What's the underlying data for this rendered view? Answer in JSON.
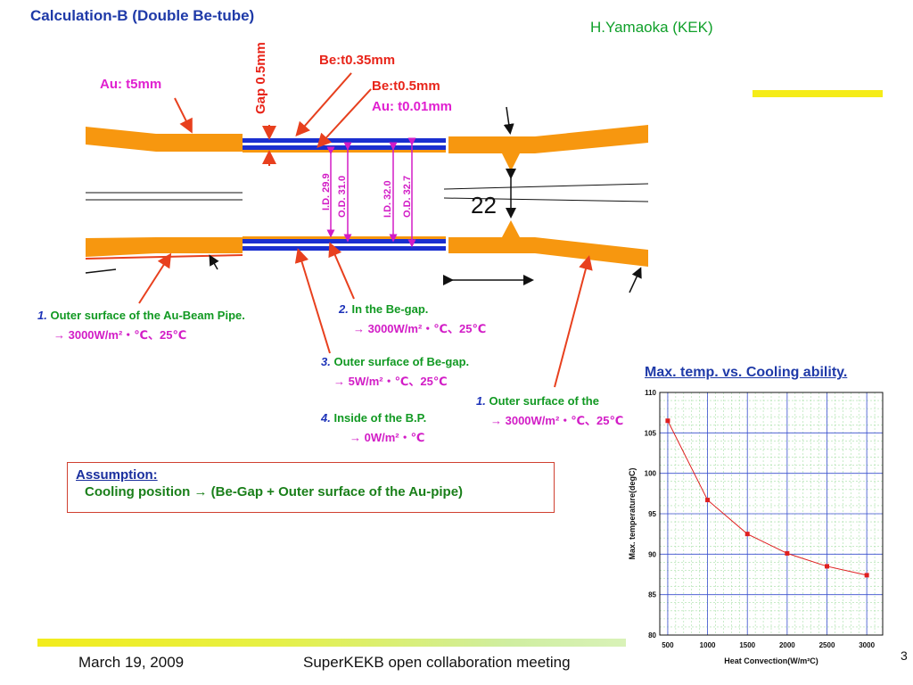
{
  "title": "Calculation-B (Double Be-tube)",
  "author": "H.Yamaoka (KEK)",
  "diagram": {
    "au_label": "Au: t5mm",
    "gap_label": "Gap 0.5mm",
    "be035_label": "Be:t0.35mm",
    "be05_label": "Be:t0.5mm",
    "au001_label": "Au: t0.01mm",
    "dim_22": "22",
    "id_299": "I.D. 29.9",
    "od_310": "O.D. 31.0",
    "id_320": "I.D. 32.0",
    "od_327": "O.D. 32.7"
  },
  "notes": [
    {
      "num": "1.",
      "text": " Outer surface of the Au-Beam Pipe.",
      "value": "→ 3000W/m²・℃、25℃"
    },
    {
      "num": "2.",
      "text": " In the Be-gap.",
      "value": "→ 3000W/m²・℃、25℃"
    },
    {
      "num": "3.",
      "text": " Outer surface of Be-gap.",
      "value": "→ 5W/m²・℃、25℃"
    },
    {
      "num": "4.",
      "text": "  Inside of the B.P.",
      "value": "→ 0W/m²・℃"
    },
    {
      "num": "1.",
      "text": " Outer surface of the",
      "value": "→ 3000W/m²・℃、25℃"
    }
  ],
  "assumption": {
    "heading": "Assumption:",
    "body": "Cooling position → (Be-Gap + Outer surface of the Au-pipe)"
  },
  "chart_title": "Max. temp. vs. Cooling ability.",
  "chart_data": {
    "type": "line",
    "xlabel": "Heat Convection(W/m²C)",
    "ylabel": "Max. temperature(degC)",
    "xlim": [
      400,
      3200
    ],
    "ylim": [
      80,
      110
    ],
    "x_ticks": [
      500,
      1000,
      1500,
      2000,
      2500,
      3000
    ],
    "y_ticks": [
      80,
      85,
      90,
      95,
      100,
      105,
      110
    ],
    "x": [
      500,
      1000,
      1500,
      2000,
      2500,
      3000
    ],
    "series": [
      {
        "values": [
          106.5,
          96.7,
          92.5,
          90.1,
          88.5,
          87.4
        ]
      }
    ],
    "grid": true,
    "color": "#e02020"
  },
  "footer": {
    "date": "March 19, 2009",
    "meeting": "SuperKEKB open collaboration meeting",
    "page": "3"
  },
  "colors": {
    "pipe": "#f7970f",
    "be": "#1a2fd0",
    "arrow": "#e8401e"
  }
}
